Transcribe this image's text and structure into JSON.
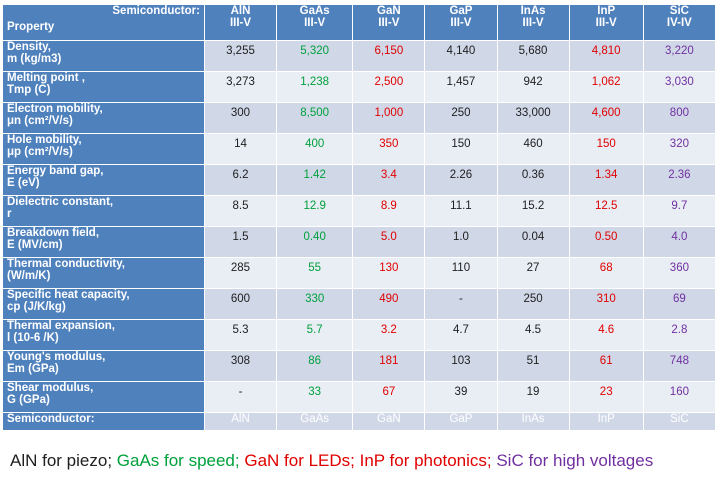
{
  "colors": {
    "header_bg": "#4f81bd",
    "row_odd": "#d0d8e8",
    "row_even": "#e9edf4",
    "aln": "#202020",
    "gaas": "#00a03c",
    "gan": "#e00000",
    "gap": "#202020",
    "inas": "#202020",
    "inp": "#e00000",
    "sic": "#7030a0"
  },
  "header": {
    "label_top": "Semiconductor:",
    "label_bottom": "Property",
    "columns": [
      {
        "name": "AlN",
        "group": "III-V"
      },
      {
        "name": "GaAs",
        "group": "III-V"
      },
      {
        "name": "GaN",
        "group": "III-V"
      },
      {
        "name": "GaP",
        "group": "III-V"
      },
      {
        "name": "InAs",
        "group": "III-V"
      },
      {
        "name": "InP",
        "group": "III-V"
      },
      {
        "name": "SiC",
        "group": "IV-IV"
      }
    ]
  },
  "rows": [
    {
      "prop1": "Density,",
      "prop2": "m (kg/m3)",
      "values": [
        "3,255",
        "5,320",
        "6,150",
        "4,140",
        "5,680",
        "4,810",
        "3,220"
      ]
    },
    {
      "prop1": "Melting point ,",
      "prop2": "Tmp (C)",
      "values": [
        "3,273",
        "1,238",
        "2,500",
        "1,457",
        "942",
        "1,062",
        "3,030"
      ]
    },
    {
      "prop1": "Electron mobility,",
      "prop2": "μn (cm²/V/s)",
      "values": [
        "300",
        "8,500",
        "1,000",
        "250",
        "33,000",
        "4,600",
        "800"
      ]
    },
    {
      "prop1": "Hole mobility,",
      "prop2": "μp (cm²/V/s)",
      "values": [
        "14",
        "400",
        "350",
        "150",
        "460",
        "150",
        "320"
      ]
    },
    {
      "prop1": "Energy band gap,",
      "prop2": "E (eV)",
      "values": [
        "6.2",
        "1.42",
        "3.4",
        "2.26",
        "0.36",
        "1.34",
        "2.36"
      ]
    },
    {
      "prop1": "Dielectric constant,",
      "prop2": "r",
      "values": [
        "8.5",
        "12.9",
        "8.9",
        "11.1",
        "15.2",
        "12.5",
        "9.7"
      ]
    },
    {
      "prop1": "Breakdown field,",
      "prop2": "E (MV/cm)",
      "values": [
        "1.5",
        "0.40",
        "5.0",
        "1.0",
        "0.04",
        "0.50",
        "4.0"
      ]
    },
    {
      "prop1": "Thermal conductivity,",
      "prop2": "(W/m/K)",
      "values": [
        "285",
        "55",
        "130",
        "110",
        "27",
        "68",
        "360"
      ]
    },
    {
      "prop1": "Specific heat capacity,",
      "prop2": "cp (J/K/kg)",
      "values": [
        "600",
        "330",
        "490",
        "-",
        "250",
        "310",
        "69"
      ]
    },
    {
      "prop1": "Thermal expansion,",
      "prop2": "l (10-6 /K)",
      "values": [
        "5.3",
        "5.7",
        "3.2",
        "4.7",
        "4.5",
        "4.6",
        "2.8"
      ]
    },
    {
      "prop1": "Young's modulus,",
      "prop2": "Em (GPa)",
      "values": [
        "308",
        "86",
        "181",
        "103",
        "51",
        "61",
        "748"
      ]
    },
    {
      "prop1": "Shear modulus,",
      "prop2": "G (GPa)",
      "values": [
        "-",
        "33",
        "67",
        "39",
        "19",
        "23",
        "160"
      ]
    }
  ],
  "footer": {
    "label": "Semiconductor:",
    "names": [
      "AlN",
      "GaAs",
      "GaN",
      "GaP",
      "InAs",
      "InP",
      "SiC"
    ]
  },
  "caption": [
    {
      "text": "AlN for piezo; ",
      "color": "#202020"
    },
    {
      "text": "GaAs for speed; ",
      "color": "#00a03c"
    },
    {
      "text": "GaN for LEDs; ",
      "color": "#e00000"
    },
    {
      "text": "InP for photonics; ",
      "color": "#e00000"
    },
    {
      "text": "SiC for high voltages",
      "color": "#7030a0"
    }
  ]
}
